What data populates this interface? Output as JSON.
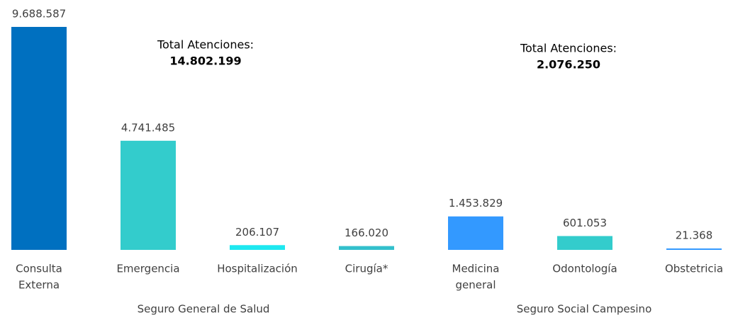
{
  "chart_data": {
    "type": "bar",
    "categories": [
      [
        "Consulta",
        "Externa"
      ],
      [
        "Emergencia"
      ],
      [
        "Hospitalización"
      ],
      [
        "Cirugía*"
      ],
      [
        "Medicina",
        "general"
      ],
      [
        "Odontología"
      ],
      [
        "Obstetricia"
      ]
    ],
    "values": [
      9688587,
      4741485,
      206107,
      166020,
      1453829,
      601053,
      21368
    ],
    "value_labels": [
      "9.688.587",
      "4.741.485",
      "206.107",
      "166.020",
      "1.453.829",
      "601.053",
      "21.368"
    ],
    "colors": [
      "#0070c0",
      "#33cccc",
      "#1ee8f0",
      "#33c0cc",
      "#3399ff",
      "#33cccc",
      "#3399ff"
    ],
    "groups": [
      {
        "name": "Seguro General de Salud",
        "annotation": "Total Atenciones:",
        "total": "14.802.199"
      },
      {
        "name": "Seguro Social Campesino",
        "annotation": "Total Atenciones:",
        "total": "2.076.250"
      }
    ]
  }
}
